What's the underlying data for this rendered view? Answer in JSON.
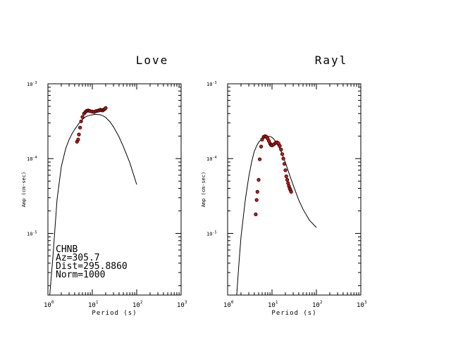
{
  "chart_data": [
    {
      "type": "scatter",
      "title": "Love",
      "xlabel": "Period (s)",
      "ylabel": "Amp (cm-sec)",
      "xscale": "log",
      "yscale": "log",
      "xlim": [
        1,
        1000
      ],
      "ylim": [
        1.5e-06,
        0.001
      ],
      "x_ticks": [
        {
          "base": "10",
          "exp": "0"
        },
        {
          "base": "10",
          "exp": "1"
        },
        {
          "base": "10",
          "exp": "2"
        },
        {
          "base": "10",
          "exp": "3"
        }
      ],
      "y_ticks": [
        {
          "base": "10",
          "exp": "-3"
        },
        {
          "base": "10",
          "exp": "-4"
        },
        {
          "base": "10",
          "exp": "-5"
        }
      ],
      "annotation": [
        "CHNB",
        "Az=305.7",
        "Dist=295.8860",
        "Norm=1000"
      ],
      "series": [
        {
          "kind": "line",
          "color": "#000000",
          "x": [
            1.1,
            1.3,
            1.6,
            2.0,
            2.5,
            3.0,
            3.5,
            4.0,
            5.0,
            6.0,
            7.0,
            8.0,
            10.0,
            12.0,
            15.0,
            18.0,
            20.0,
            25.0,
            30.0,
            40.0,
            50.0,
            70.0,
            100.0
          ],
          "y": [
            1.5e-06,
            5e-06,
            2.8e-05,
            7.8e-05,
            0.000135,
            0.00018,
            0.000215,
            0.000245,
            0.000295,
            0.000335,
            0.00036,
            0.000375,
            0.000385,
            0.00039,
            0.000385,
            0.00037,
            0.000355,
            0.00031,
            0.000265,
            0.000195,
            0.000145,
            8.8e-05,
            4.5e-05
          ]
        },
        {
          "kind": "points",
          "color": "#e01010",
          "x": [
            4.5,
            4.8,
            5.0,
            5.3,
            5.6,
            6.0,
            6.5,
            7.0,
            7.5,
            8.0,
            8.5,
            9.0,
            10.0,
            11.0,
            12.0,
            13.0,
            14.0,
            15.0,
            16.0,
            17.0,
            18.0,
            19.0,
            20.0
          ],
          "y": [
            0.000168,
            0.00018,
            0.00021,
            0.00026,
            0.000315,
            0.00036,
            0.0004,
            0.00042,
            0.000435,
            0.00044,
            0.000435,
            0.00043,
            0.000425,
            0.00042,
            0.00043,
            0.000435,
            0.00044,
            0.00045,
            0.000445,
            0.00044,
            0.00045,
            0.00046,
            0.000475
          ]
        }
      ]
    },
    {
      "type": "scatter",
      "title": "Rayl",
      "xlabel": "Period (s)",
      "ylabel": "Amp (cm-sec)",
      "xscale": "log",
      "yscale": "log",
      "xlim": [
        1,
        1000
      ],
      "ylim": [
        1.5e-06,
        0.001
      ],
      "x_ticks": [
        {
          "base": "10",
          "exp": "0"
        },
        {
          "base": "10",
          "exp": "1"
        },
        {
          "base": "10",
          "exp": "2"
        },
        {
          "base": "10",
          "exp": "3"
        }
      ],
      "y_ticks": [
        {
          "base": "10",
          "exp": "-3"
        },
        {
          "base": "10",
          "exp": "-4"
        },
        {
          "base": "10",
          "exp": "-5"
        }
      ],
      "series": [
        {
          "kind": "line",
          "color": "#000000",
          "x": [
            1.6,
            1.8,
            2.0,
            2.5,
            3.0,
            3.5,
            4.0,
            4.5,
            5.0,
            5.5,
            6.0,
            6.5,
            7.0,
            7.5,
            8.0,
            9.0,
            10.0,
            11.0,
            12.0,
            14.0,
            16.0,
            18.0,
            20.0,
            25.0,
            30.0,
            40.0,
            50.0,
            70.0,
            100.0
          ],
          "y": [
            1.5e-06,
            4e-06,
            9e-06,
            2.8e-05,
            5.8e-05,
            9.2e-05,
            0.000125,
            0.000148,
            0.000165,
            0.000175,
            0.000182,
            0.000188,
            0.000192,
            0.000195,
            0.000198,
            0.000198,
            0.000192,
            0.000182,
            0.00017,
            0.000145,
            0.000125,
            0.000105,
            8.8e-05,
            6e-05,
            4.4e-05,
            2.8e-05,
            2.1e-05,
            1.5e-05,
            1.2e-05
          ]
        },
        {
          "kind": "points",
          "color": "#e01010",
          "x": [
            4.3,
            4.5,
            4.7,
            5.0,
            5.3,
            5.7,
            6.0,
            6.5,
            7.0,
            7.5,
            8.0,
            8.5,
            9.0,
            9.5,
            10.0,
            11.0,
            12.0,
            13.0,
            14.0,
            15.0,
            16.0,
            17.0,
            18.0,
            19.0,
            20.0,
            21.0,
            22.0,
            23.0,
            24.0,
            25.0,
            26.0,
            27.0
          ],
          "y": [
            1.8e-05,
            2.8e-05,
            3.6e-05,
            5.2e-05,
            9.8e-05,
            0.000145,
            0.00018,
            0.000195,
            0.0002,
            0.000195,
            0.000185,
            0.000172,
            0.00016,
            0.000152,
            0.00015,
            0.000155,
            0.000162,
            0.000165,
            0.00016,
            0.000148,
            0.000132,
            0.000115,
            0.0001,
            8.5e-05,
            7e-05,
            5.8e-05,
            5.2e-05,
            4.7e-05,
            4.3e-05,
            4e-05,
            3.8e-05,
            3.6e-05
          ]
        }
      ]
    }
  ]
}
